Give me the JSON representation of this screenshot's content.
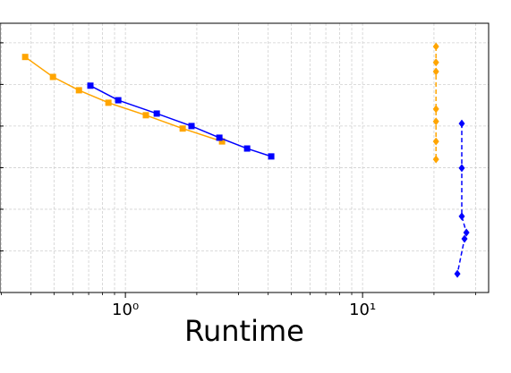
{
  "chart_data": {
    "type": "line",
    "x_label": "Runtime",
    "xscale": "log",
    "xlim": [
      0.296,
      34.0
    ],
    "ylim": [
      0,
      6.47
    ],
    "xticks": [
      {
        "value": 1,
        "label": "10⁰"
      },
      {
        "value": 10,
        "label": "10¹"
      }
    ],
    "xminorticks": [
      0.3,
      0.4,
      0.5,
      0.6,
      0.7,
      0.8,
      0.9,
      2,
      3,
      4,
      5,
      6,
      7,
      8,
      9,
      20,
      30
    ],
    "yticks": [
      1,
      2,
      3,
      4,
      5,
      6
    ],
    "grid": true,
    "series": [
      {
        "color": "#ffa500",
        "marker": "square",
        "linestyle": "solid",
        "x": [
          0.378,
          0.495,
          0.637,
          0.848,
          1.22,
          1.744,
          2.556
        ],
        "values": [
          5.66,
          5.18,
          4.86,
          4.56,
          4.26,
          3.94,
          3.63
        ]
      },
      {
        "color": "#0000ff",
        "marker": "square",
        "linestyle": "solid",
        "x": [
          0.712,
          0.933,
          1.356,
          1.9,
          2.49,
          3.26,
          4.12
        ],
        "values": [
          4.97,
          4.62,
          4.3,
          4.0,
          3.72,
          3.46,
          3.27
        ]
      },
      {
        "color": "#ffa500",
        "marker": "diamond",
        "linestyle": "dashed",
        "x": [
          20.4,
          20.4,
          20.4,
          20.4,
          20.4,
          20.4,
          20.4
        ],
        "values": [
          5.91,
          5.53,
          5.31,
          4.41,
          4.11,
          3.63,
          3.2
        ]
      },
      {
        "color": "#0000ff",
        "marker": "diamond",
        "linestyle": "dashed",
        "x": [
          26.2,
          26.2,
          26.2,
          27.4,
          26.9,
          25.1
        ],
        "values": [
          4.06,
          2.99,
          1.83,
          1.44,
          1.29,
          0.45
        ]
      }
    ]
  }
}
